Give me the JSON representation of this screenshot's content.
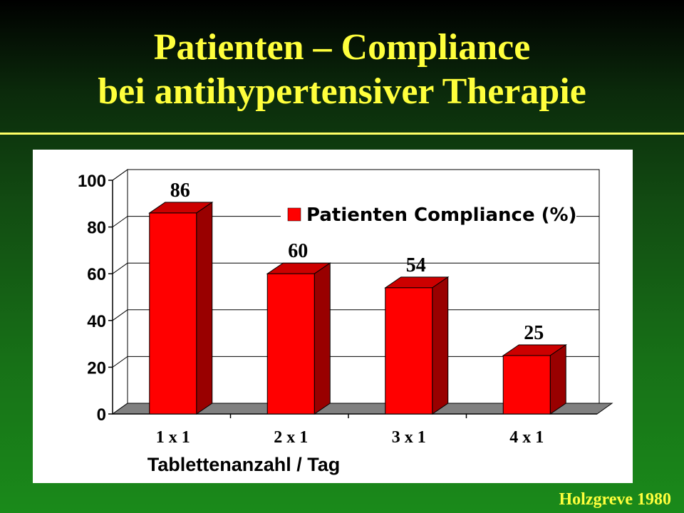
{
  "header": {
    "title_line1": "Patienten – Compliance",
    "title_line2": "bei antihypertensiver Therapie"
  },
  "citation": "Holzgreve 1980",
  "colors": {
    "title": "#ffff3c",
    "bar_front": "#ff0000",
    "bar_side": "#990000",
    "bar_top": "#cc0000",
    "floor": "#808080"
  },
  "chart_data": {
    "type": "bar",
    "categories": [
      "1 x 1",
      "2 x 1",
      "3 x 1",
      "4 x 1"
    ],
    "series": [
      {
        "name": "Patienten Compliance (%)",
        "values": [
          86,
          60,
          54,
          25
        ]
      }
    ],
    "data_labels": [
      "86",
      "60",
      "54",
      "25"
    ],
    "yticks": [
      "0",
      "20",
      "40",
      "60",
      "80",
      "100"
    ],
    "ylim": [
      0,
      100
    ],
    "xlabel": "Tablettenanzahl / Tag",
    "ylabel": "",
    "grid": true,
    "legend": "top-right",
    "style": "3d"
  }
}
